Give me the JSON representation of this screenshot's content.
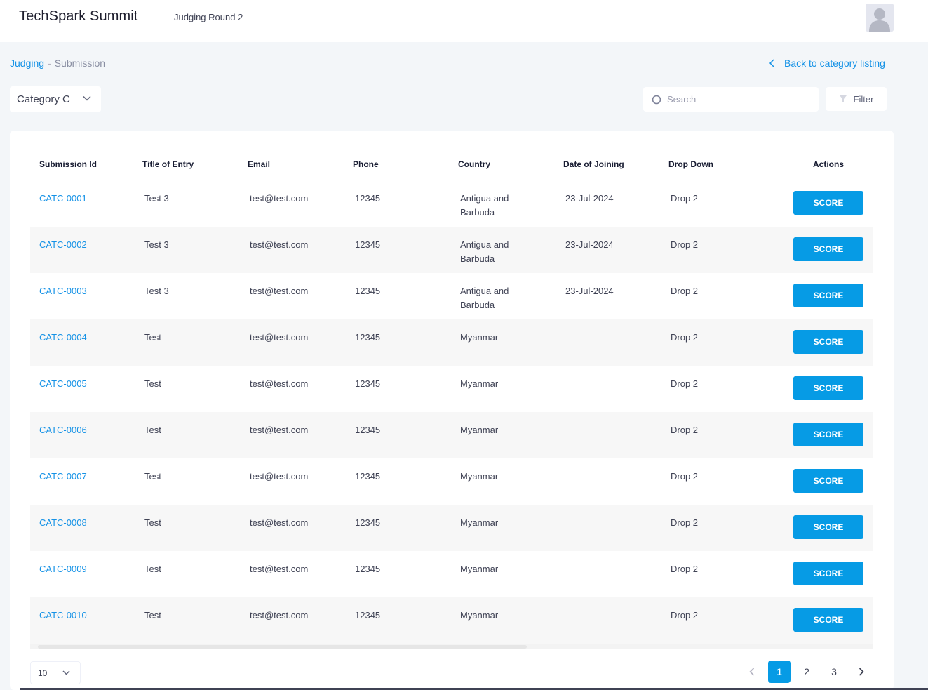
{
  "header": {
    "app_title": "TechSpark Summit",
    "round_title": "Judging Round 2"
  },
  "breadcrumb": {
    "root": "Judging",
    "separator": "-",
    "current": "Submission"
  },
  "back_link": "Back to category listing",
  "category_select": {
    "value": "Category C"
  },
  "search": {
    "placeholder": "Search",
    "value": ""
  },
  "filter_label": "Filter",
  "table": {
    "columns": [
      "Submission Id",
      "Title of Entry",
      "Email",
      "Phone",
      "Country",
      "Date of Joining",
      "Drop Down",
      "Actions"
    ],
    "action_label": "SCORE",
    "rows": [
      {
        "id": "CATC-0001",
        "title": "Test 3",
        "email": "test@test.com",
        "phone": "12345",
        "country_1": "Antigua and",
        "country_2": "Barbuda",
        "date": "23-Jul-2024",
        "drop": "Drop 2"
      },
      {
        "id": "CATC-0002",
        "title": "Test 3",
        "email": "test@test.com",
        "phone": "12345",
        "country_1": "Antigua and",
        "country_2": "Barbuda",
        "date": "23-Jul-2024",
        "drop": "Drop 2"
      },
      {
        "id": "CATC-0003",
        "title": "Test 3",
        "email": "test@test.com",
        "phone": "12345",
        "country_1": "Antigua and",
        "country_2": "Barbuda",
        "date": "23-Jul-2024",
        "drop": "Drop 2"
      },
      {
        "id": "CATC-0004",
        "title": "Test",
        "email": "test@test.com",
        "phone": "12345",
        "country_1": "Myanmar",
        "country_2": "",
        "date": "",
        "drop": "Drop 2"
      },
      {
        "id": "CATC-0005",
        "title": "Test",
        "email": "test@test.com",
        "phone": "12345",
        "country_1": "Myanmar",
        "country_2": "",
        "date": "",
        "drop": "Drop 2"
      },
      {
        "id": "CATC-0006",
        "title": "Test",
        "email": "test@test.com",
        "phone": "12345",
        "country_1": "Myanmar",
        "country_2": "",
        "date": "",
        "drop": "Drop 2"
      },
      {
        "id": "CATC-0007",
        "title": "Test",
        "email": "test@test.com",
        "phone": "12345",
        "country_1": "Myanmar",
        "country_2": "",
        "date": "",
        "drop": "Drop 2"
      },
      {
        "id": "CATC-0008",
        "title": "Test",
        "email": "test@test.com",
        "phone": "12345",
        "country_1": "Myanmar",
        "country_2": "",
        "date": "",
        "drop": "Drop 2"
      },
      {
        "id": "CATC-0009",
        "title": "Test",
        "email": "test@test.com",
        "phone": "12345",
        "country_1": "Myanmar",
        "country_2": "",
        "date": "",
        "drop": "Drop 2"
      },
      {
        "id": "CATC-0010",
        "title": "Test",
        "email": "test@test.com",
        "phone": "12345",
        "country_1": "Myanmar",
        "country_2": "",
        "date": "",
        "drop": "Drop 2"
      }
    ]
  },
  "pagination": {
    "page_size": "10",
    "pages": [
      "1",
      "2",
      "3"
    ],
    "current_page": "1"
  },
  "colors": {
    "accent": "#069be5",
    "link": "#1592e6",
    "background": "#f3f6f9"
  },
  "icons": {
    "back": "chevron-left-icon",
    "dropdown": "chevron-down-icon",
    "search": "search-icon",
    "filter": "filter-icon",
    "prev": "chevron-left-icon",
    "next": "chevron-right-icon",
    "user": "user-avatar-icon"
  }
}
